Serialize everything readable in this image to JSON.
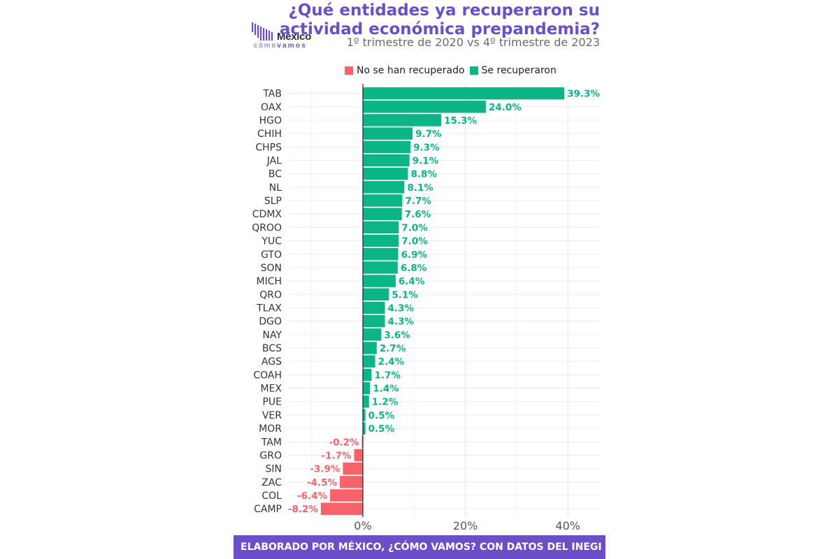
{
  "header": {
    "title_line1": "¿Qué entidades ya recuperaron su",
    "title_line2": "actividad económica prepandemia?",
    "subtitle": "1º trimestre de 2020 vs 4º trimestre de 2023"
  },
  "logo": {
    "word": "México",
    "sub_a": "cómo",
    "sub_b": "vamos"
  },
  "legend": [
    {
      "label": "No se han recuperado",
      "color": "#f8636b"
    },
    {
      "label": "Se recuperaron",
      "color": "#0cb585"
    }
  ],
  "footer": "ELABORADO POR MÉXICO, ¿CÓMO VAMOS? CON DATOS DEL INEGI",
  "chart_data": {
    "type": "bar",
    "orientation": "horizontal",
    "categories": [
      "TAB",
      "OAX",
      "HGO",
      "CHIH",
      "CHPS",
      "JAL",
      "BC",
      "NL",
      "SLP",
      "CDMX",
      "QROO",
      "YUC",
      "GTO",
      "SON",
      "MICH",
      "QRO",
      "TLAX",
      "DGO",
      "NAY",
      "BCS",
      "AGS",
      "COAH",
      "MEX",
      "PUE",
      "VER",
      "MOR",
      "TAM",
      "GRO",
      "SIN",
      "ZAC",
      "COL",
      "CAMP"
    ],
    "values": [
      39.3,
      24.0,
      15.3,
      9.7,
      9.3,
      9.1,
      8.8,
      8.1,
      7.7,
      7.6,
      7.0,
      7.0,
      6.9,
      6.8,
      6.4,
      5.1,
      4.3,
      4.3,
      3.6,
      2.7,
      2.4,
      1.7,
      1.4,
      1.2,
      0.5,
      0.5,
      -0.2,
      -1.7,
      -3.9,
      -4.5,
      -6.4,
      -8.2
    ],
    "labels": [
      "39.3%",
      "24.0%",
      "15.3%",
      "9.7%",
      "9.3%",
      "9.1%",
      "8.8%",
      "8.1%",
      "7.7%",
      "7.6%",
      "7.0%",
      "7.0%",
      "6.9%",
      "6.8%",
      "6.4%",
      "5.1%",
      "4.3%",
      "4.3%",
      "3.6%",
      "2.7%",
      "2.4%",
      "1.7%",
      "1.4%",
      "1.2%",
      "0.5%",
      "0.5%",
      "-0.2%",
      "-1.7%",
      "-3.9%",
      "-4.5%",
      "-6.4%",
      "-8.2%"
    ],
    "xticks": [
      0,
      20,
      40
    ],
    "xtick_labels": [
      "0%",
      "20%",
      "40%"
    ],
    "xlim": [
      -10,
      46
    ],
    "positive_color": "#0cb585",
    "negative_color": "#f8636b",
    "grid": true
  }
}
